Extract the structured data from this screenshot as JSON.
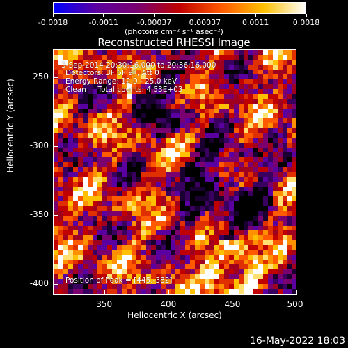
{
  "colorbar": {
    "ticks": [
      "-0.0018",
      "-0.0011",
      "-0.00037",
      "0.00037",
      "0.0011",
      "0.0018"
    ],
    "units": "(photons cm⁻² s⁻¹ asec⁻²)",
    "colors": [
      "#0000ff",
      "#5a00a0",
      "#7a0070",
      "#c00000",
      "#ff5a00",
      "#ffc000",
      "#ffffff"
    ]
  },
  "title": "Reconstructed RHESSI Image",
  "annotations": {
    "line1": "3-Sep-2014 20:30:16.000 to 20:36:16.000",
    "line2": "Detectors: 3F 6F 9F, Att 0",
    "line3": "Energy Range: 12.0 - 25.0 keV",
    "line4": "Clean     Total counts: 4.53E+03",
    "peak": "Position of Peak = [445,-382]"
  },
  "chart_data": {
    "type": "heatmap",
    "title": "Reconstructed RHESSI Image",
    "xlabel": "Heliocentric X (arcsec)",
    "ylabel": "Heliocentric Y (arcsec)",
    "xlim": [
      310,
      500
    ],
    "ylim": [
      -408,
      -230
    ],
    "xticks": [
      "350",
      "400",
      "450",
      "500"
    ],
    "yticks": [
      "-250",
      "-300",
      "-350",
      "-400"
    ],
    "peak_position": [
      445,
      -382
    ],
    "colorbar_range": [
      -0.0018,
      0.0018
    ]
  },
  "datestamp": "16-May-2022 18:03"
}
